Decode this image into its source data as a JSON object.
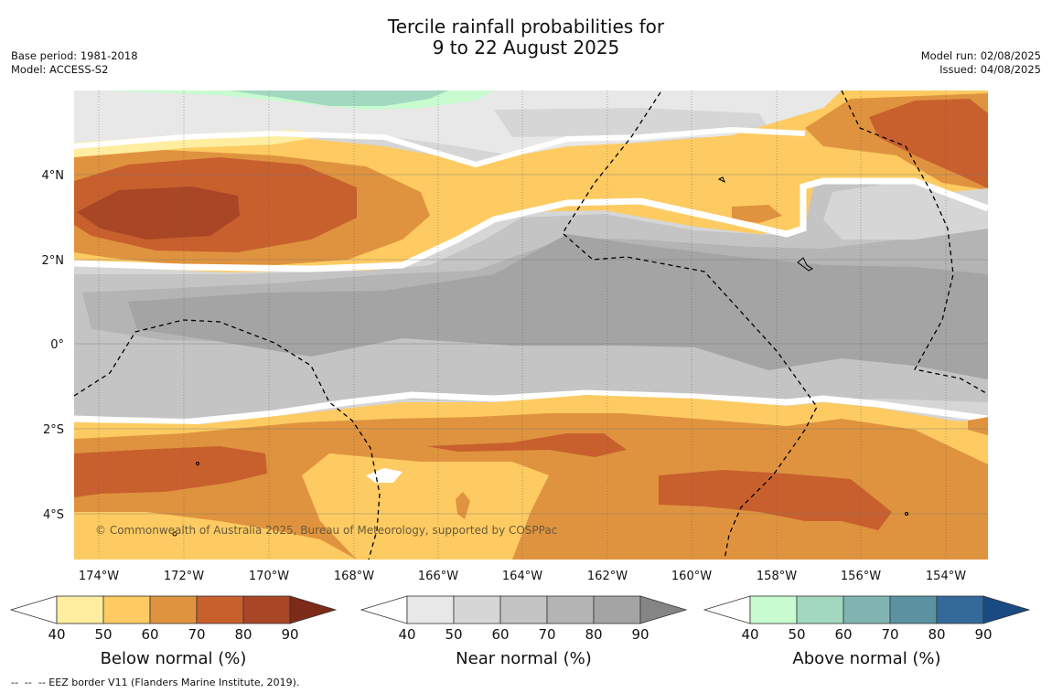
{
  "title_line1": "Tercile rainfall probabilities for",
  "title_line2": "9 to 22 August 2025",
  "base_period": "Base period: 1981-2018",
  "model": "Model: ACCESS-S2",
  "model_run": "Model run: 02/08/2025",
  "issued": "Issued: 04/08/2025",
  "copyright": "© Commonwealth of Australia 2025, Bureau of Meteorology, supported by COSPPac",
  "footer": "--  --  -- EEZ border V11 (Flanders Marine Institute, 2019).",
  "map": {
    "lon_labels": [
      "174°W",
      "172°W",
      "170°W",
      "168°W",
      "166°W",
      "164°W",
      "162°W",
      "160°W",
      "158°W",
      "156°W",
      "154°W"
    ],
    "lat_labels": [
      "4°N",
      "2°N",
      "0°",
      "2°S",
      "4°S"
    ]
  },
  "colorbars": [
    {
      "title": "Below normal (%)",
      "ticks": [
        "40",
        "50",
        "60",
        "70",
        "80",
        "90"
      ],
      "colors": [
        "#ffffff",
        "#ffeda0",
        "#fdcb62",
        "#e0933f",
        "#c8602e",
        "#a84626",
        "#7e2a18"
      ]
    },
    {
      "title": "Near normal (%)",
      "ticks": [
        "40",
        "50",
        "60",
        "70",
        "80",
        "90"
      ],
      "colors": [
        "#ffffff",
        "#e8e8e8",
        "#d6d6d6",
        "#c4c4c4",
        "#b4b4b4",
        "#a4a4a4",
        "#858585"
      ]
    },
    {
      "title": "Above normal (%)",
      "ticks": [
        "40",
        "50",
        "60",
        "70",
        "80",
        "90"
      ],
      "colors": [
        "#ffffff",
        "#c8fcd0",
        "#a2d8c0",
        "#80b4b0",
        "#5b92a2",
        "#346a9a",
        "#1a4a82"
      ]
    }
  ]
}
